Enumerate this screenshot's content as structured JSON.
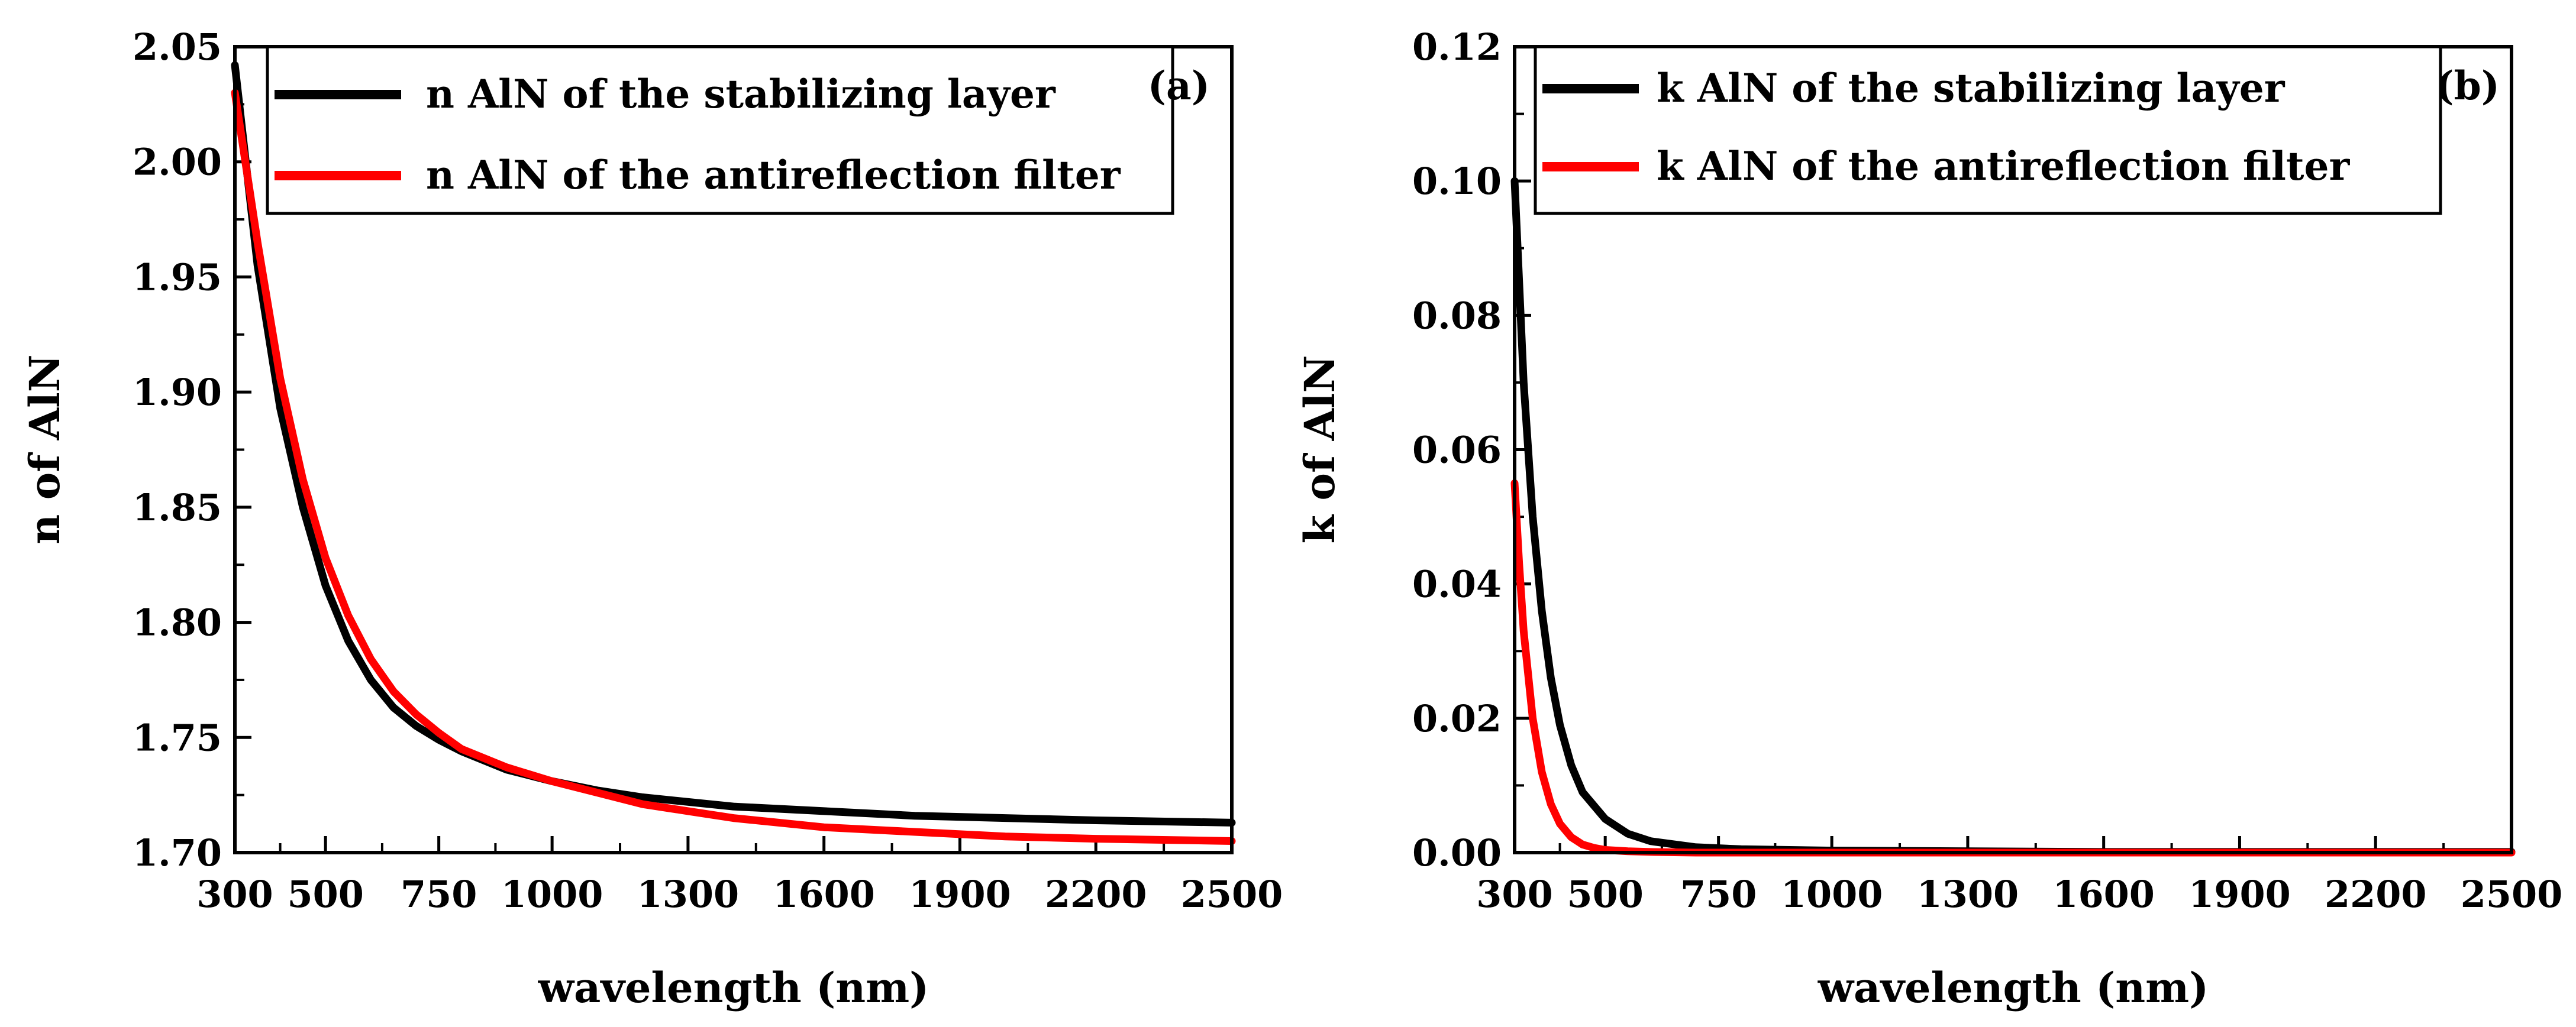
{
  "chart_data": [
    {
      "type": "line",
      "panel_label": "(a)",
      "xlabel": "wavelength (nm)",
      "ylabel": "n of AlN",
      "xlim": [
        300,
        2500
      ],
      "ylim": [
        1.7,
        2.05
      ],
      "x_ticks": [
        300,
        500,
        750,
        1000,
        1300,
        1600,
        1900,
        2200,
        2500
      ],
      "y_ticks": [
        1.7,
        1.75,
        1.8,
        1.85,
        1.9,
        1.95,
        2.0,
        2.05
      ],
      "y_tick_labels": [
        "1.70",
        "1.75",
        "1.80",
        "1.85",
        "1.90",
        "1.95",
        "2.00",
        "2.05"
      ],
      "legend_position": "top",
      "grid": false,
      "series": [
        {
          "name": "n AlN of the stabilizing layer",
          "color": "#000000",
          "x": [
            300,
            350,
            400,
            450,
            500,
            550,
            600,
            650,
            700,
            750,
            800,
            900,
            1000,
            1100,
            1200,
            1300,
            1400,
            1600,
            1800,
            2000,
            2200,
            2500
          ],
          "y": [
            2.042,
            1.955,
            1.893,
            1.85,
            1.816,
            1.792,
            1.775,
            1.763,
            1.755,
            1.749,
            1.744,
            1.736,
            1.731,
            1.727,
            1.724,
            1.722,
            1.72,
            1.718,
            1.716,
            1.715,
            1.714,
            1.713
          ]
        },
        {
          "name": "n AlN of the antireflection filter",
          "color": "#ff0000",
          "x": [
            300,
            350,
            400,
            450,
            500,
            550,
            600,
            650,
            700,
            750,
            800,
            900,
            1000,
            1100,
            1200,
            1300,
            1400,
            1600,
            1800,
            2000,
            2200,
            2500
          ],
          "y": [
            2.03,
            1.965,
            1.906,
            1.862,
            1.828,
            1.803,
            1.784,
            1.77,
            1.76,
            1.752,
            1.745,
            1.737,
            1.731,
            1.726,
            1.721,
            1.718,
            1.715,
            1.711,
            1.709,
            1.707,
            1.706,
            1.705
          ]
        }
      ]
    },
    {
      "type": "line",
      "panel_label": "(b)",
      "xlabel": "wavelength (nm)",
      "ylabel": "k of AlN",
      "xlim": [
        300,
        2500
      ],
      "ylim": [
        0.0,
        0.12
      ],
      "x_ticks": [
        300,
        500,
        750,
        1000,
        1300,
        1600,
        1900,
        2200,
        2500
      ],
      "y_ticks": [
        0.0,
        0.02,
        0.04,
        0.06,
        0.08,
        0.1,
        0.12
      ],
      "y_tick_labels": [
        "0.00",
        "0.02",
        "0.04",
        "0.06",
        "0.08",
        "0.10",
        "0.12"
      ],
      "legend_position": "top",
      "grid": false,
      "series": [
        {
          "name": "k AlN of the stabilizing layer",
          "color": "#000000",
          "x": [
            300,
            310,
            320,
            340,
            360,
            380,
            400,
            425,
            450,
            500,
            550,
            600,
            700,
            800,
            1000,
            1300,
            1600,
            2000,
            2500
          ],
          "y": [
            0.1,
            0.085,
            0.07,
            0.05,
            0.036,
            0.026,
            0.019,
            0.013,
            0.009,
            0.005,
            0.0028,
            0.0017,
            0.0008,
            0.0005,
            0.0003,
            0.0002,
            0.0001,
            0.0001,
            0.0001
          ]
        },
        {
          "name": "k AlN of the antireflection filter",
          "color": "#ff0000",
          "x": [
            300,
            310,
            320,
            340,
            360,
            380,
            400,
            425,
            450,
            475,
            500,
            550,
            600,
            700,
            1000,
            1600,
            2500
          ],
          "y": [
            0.055,
            0.043,
            0.033,
            0.02,
            0.012,
            0.0072,
            0.0043,
            0.0023,
            0.0012,
            0.0007,
            0.0004,
            0.0002,
            0.0001,
            0.0,
            0.0,
            0.0,
            0.0
          ]
        }
      ]
    }
  ]
}
